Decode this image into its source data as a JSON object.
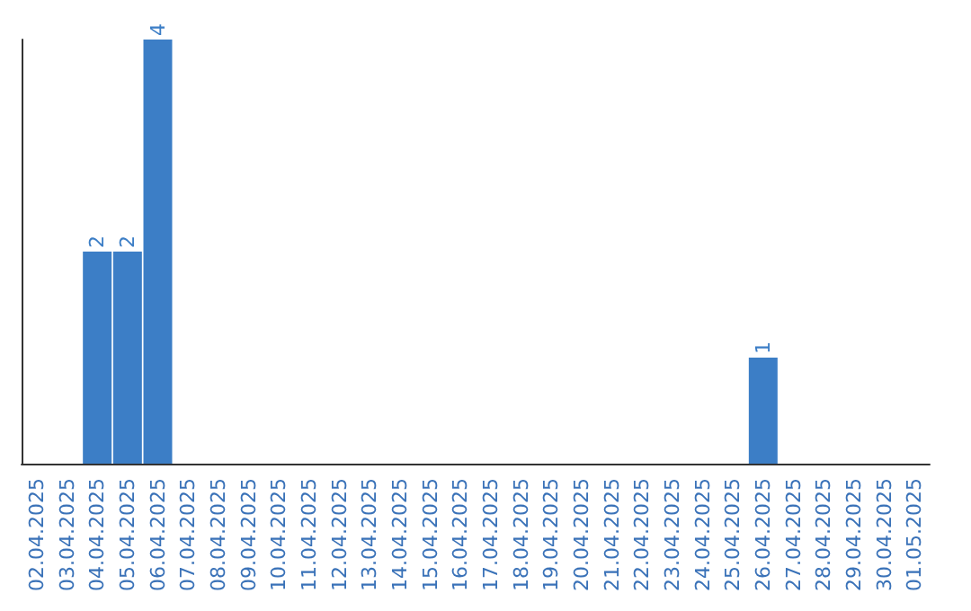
{
  "chart_data": {
    "type": "bar",
    "categories": [
      "02.04.2025",
      "03.04.2025",
      "04.04.2025",
      "05.04.2025",
      "06.04.2025",
      "07.04.2025",
      "08.04.2025",
      "09.04.2025",
      "10.04.2025",
      "11.04.2025",
      "12.04.2025",
      "13.04.2025",
      "14.04.2025",
      "15.04.2025",
      "16.04.2025",
      "17.04.2025",
      "18.04.2025",
      "19.04.2025",
      "20.04.2025",
      "21.04.2025",
      "22.04.2025",
      "23.04.2025",
      "24.04.2025",
      "25.04.2025",
      "26.04.2025",
      "27.04.2025",
      "28.04.2025",
      "29.04.2025",
      "30.04.2025",
      "01.05.2025"
    ],
    "values": [
      0,
      0,
      2,
      2,
      4,
      0,
      0,
      0,
      0,
      0,
      0,
      0,
      0,
      0,
      0,
      0,
      0,
      0,
      0,
      0,
      0,
      0,
      0,
      0,
      1,
      0,
      0,
      0,
      0,
      0
    ],
    "value_labels": [
      null,
      null,
      "2",
      "2",
      "4",
      null,
      null,
      null,
      null,
      null,
      null,
      null,
      null,
      null,
      null,
      null,
      null,
      null,
      null,
      null,
      null,
      null,
      null,
      null,
      "1",
      null,
      null,
      null,
      null,
      null
    ],
    "color": "#3c7ec6",
    "grid": false,
    "tick_labels": "x"
  }
}
